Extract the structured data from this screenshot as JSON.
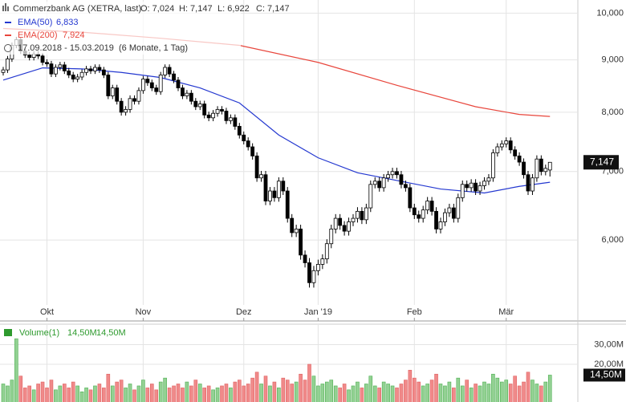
{
  "chart_data": [
    {
      "type": "candlestick",
      "title": "Commerzbank AG (XETRA, last)",
      "quote": [
        "O: 7,024",
        "H: 7,147",
        "L: 6,922",
        "C: 7,147"
      ],
      "period": "17.09.2018 - 15.03.2019",
      "period_note": "(6 Monate, 1 Tag)",
      "open": [
        8.75,
        8.8,
        9.02,
        9.3,
        9.42,
        9.18,
        9.1,
        9.05,
        9.12,
        9.08,
        8.95,
        8.92,
        8.72,
        8.85,
        8.9,
        8.78,
        8.7,
        8.62,
        8.66,
        8.75,
        8.82,
        8.78,
        8.85,
        8.8,
        8.7,
        8.3,
        8.45,
        8.2,
        8.0,
        8.05,
        8.25,
        8.2,
        8.4,
        8.62,
        8.55,
        8.45,
        8.38,
        8.7,
        8.85,
        8.72,
        8.6,
        8.45,
        8.3,
        8.35,
        8.2,
        8.1,
        8.15,
        7.95,
        7.9,
        7.98,
        8.05,
        8.02,
        7.85,
        7.9,
        7.75,
        7.6,
        7.5,
        7.4,
        7.25,
        6.9,
        6.95,
        6.55,
        6.7,
        6.6,
        6.85,
        6.7,
        6.3,
        6.1,
        6.15,
        5.8,
        5.7,
        5.45,
        5.6,
        5.68,
        5.75,
        5.95,
        6.15,
        6.3,
        6.2,
        6.12,
        6.25,
        6.3,
        6.4,
        6.28,
        6.45,
        6.8,
        6.85,
        6.75,
        6.9,
        6.95,
        7.0,
        6.95,
        6.8,
        6.75,
        6.45,
        6.35,
        6.3,
        6.42,
        6.55,
        6.4,
        6.15,
        6.25,
        6.38,
        6.45,
        6.3,
        6.6,
        6.8,
        6.75,
        6.82,
        6.7,
        6.78,
        6.85,
        6.9,
        7.3,
        7.4,
        7.45,
        7.5,
        7.35,
        7.25,
        7.15,
        6.95,
        6.7,
        6.9,
        7.2,
        7.0,
        7.024
      ],
      "high": [
        8.86,
        9.08,
        9.36,
        9.48,
        9.48,
        9.24,
        9.16,
        9.18,
        9.18,
        9.14,
        9.01,
        8.98,
        8.91,
        8.96,
        8.96,
        8.84,
        8.76,
        8.72,
        8.81,
        8.88,
        8.88,
        8.91,
        8.91,
        8.86,
        8.76,
        8.51,
        8.51,
        8.26,
        8.11,
        8.31,
        8.31,
        8.46,
        8.68,
        8.68,
        8.61,
        8.51,
        8.76,
        8.91,
        8.91,
        8.78,
        8.66,
        8.51,
        8.41,
        8.41,
        8.26,
        8.21,
        8.21,
        8.01,
        8.04,
        8.11,
        8.11,
        8.08,
        7.96,
        7.96,
        7.81,
        7.66,
        7.56,
        7.46,
        7.31,
        7.01,
        7.01,
        6.76,
        6.76,
        6.91,
        6.91,
        6.76,
        6.36,
        6.21,
        6.21,
        5.86,
        5.76,
        5.66,
        5.74,
        5.81,
        6.01,
        6.21,
        6.36,
        6.36,
        6.26,
        6.31,
        6.36,
        6.46,
        6.46,
        6.51,
        6.86,
        6.91,
        6.91,
        6.96,
        7.01,
        7.06,
        7.06,
        7.01,
        6.86,
        6.81,
        6.51,
        6.41,
        6.48,
        6.61,
        6.61,
        6.46,
        6.31,
        6.44,
        6.51,
        6.51,
        6.66,
        6.86,
        6.86,
        6.88,
        6.88,
        6.84,
        6.91,
        6.96,
        7.36,
        7.46,
        7.51,
        7.56,
        7.56,
        7.41,
        7.31,
        7.21,
        7.01,
        6.96,
        7.26,
        7.26,
        7.11,
        7.147
      ],
      "low": [
        8.69,
        8.74,
        8.96,
        9.24,
        9.12,
        9.04,
        8.99,
        8.99,
        9.02,
        8.89,
        8.86,
        8.66,
        8.66,
        8.79,
        8.72,
        8.64,
        8.56,
        8.56,
        8.6,
        8.69,
        8.72,
        8.72,
        8.74,
        8.64,
        8.24,
        8.24,
        8.14,
        7.94,
        7.94,
        7.99,
        8.14,
        8.14,
        8.34,
        8.49,
        8.39,
        8.32,
        8.32,
        8.64,
        8.66,
        8.54,
        8.39,
        8.24,
        8.24,
        8.14,
        8.04,
        8.04,
        7.89,
        7.84,
        7.84,
        7.92,
        7.96,
        7.79,
        7.79,
        7.69,
        7.54,
        7.44,
        7.34,
        7.19,
        6.84,
        6.84,
        6.49,
        6.49,
        6.54,
        6.54,
        6.64,
        6.24,
        6.04,
        6.04,
        5.74,
        5.64,
        5.39,
        5.39,
        5.54,
        5.62,
        5.69,
        5.89,
        6.09,
        6.14,
        6.06,
        6.06,
        6.19,
        6.24,
        6.22,
        6.22,
        6.39,
        6.74,
        6.69,
        6.69,
        6.84,
        6.89,
        6.89,
        6.74,
        6.69,
        6.39,
        6.29,
        6.24,
        6.24,
        6.36,
        6.34,
        6.09,
        6.09,
        6.19,
        6.32,
        6.24,
        6.24,
        6.54,
        6.69,
        6.69,
        6.64,
        6.64,
        6.72,
        6.79,
        6.84,
        7.24,
        7.34,
        7.39,
        7.29,
        7.19,
        7.09,
        6.89,
        6.64,
        6.64,
        6.84,
        6.94,
        6.94,
        6.922
      ],
      "close": [
        8.8,
        9.02,
        9.3,
        9.42,
        9.18,
        9.1,
        9.05,
        9.12,
        9.08,
        8.95,
        8.92,
        8.72,
        8.85,
        8.9,
        8.78,
        8.7,
        8.62,
        8.66,
        8.75,
        8.82,
        8.78,
        8.85,
        8.8,
        8.7,
        8.3,
        8.45,
        8.2,
        8.0,
        8.05,
        8.25,
        8.2,
        8.4,
        8.62,
        8.55,
        8.45,
        8.38,
        8.7,
        8.85,
        8.72,
        8.6,
        8.45,
        8.3,
        8.35,
        8.2,
        8.1,
        8.15,
        7.95,
        7.9,
        7.98,
        8.05,
        8.02,
        7.85,
        7.9,
        7.75,
        7.6,
        7.5,
        7.4,
        7.25,
        6.9,
        6.95,
        6.55,
        6.7,
        6.6,
        6.85,
        6.7,
        6.3,
        6.1,
        6.15,
        5.8,
        5.7,
        5.45,
        5.6,
        5.68,
        5.75,
        5.95,
        6.15,
        6.3,
        6.2,
        6.12,
        6.25,
        6.3,
        6.4,
        6.28,
        6.45,
        6.8,
        6.85,
        6.75,
        6.9,
        6.95,
        7.0,
        6.95,
        6.8,
        6.75,
        6.45,
        6.35,
        6.3,
        6.42,
        6.55,
        6.4,
        6.15,
        6.25,
        6.38,
        6.45,
        6.3,
        6.6,
        6.8,
        6.75,
        6.82,
        6.7,
        6.78,
        6.85,
        6.9,
        7.3,
        7.4,
        7.45,
        7.5,
        7.35,
        7.25,
        7.15,
        6.95,
        6.7,
        6.9,
        7.2,
        7.0,
        7.05,
        7.147
      ],
      "up_color": "#ffffff",
      "down_color": "#000000",
      "series": [
        {
          "name": "EMA(50)",
          "color": "#2438d0",
          "value_label": "6,833",
          "x": [
            0,
            9,
            18,
            27,
            36,
            45,
            54,
            63,
            72,
            81,
            90,
            100,
            110,
            118,
            125
          ],
          "values": [
            8.6,
            8.84,
            8.82,
            8.75,
            8.65,
            8.45,
            8.17,
            7.6,
            7.22,
            6.98,
            6.86,
            6.73,
            6.67,
            6.77,
            6.833
          ]
        },
        {
          "name": "EMA(200)",
          "color": "#e8463c",
          "value_label": "7,924",
          "x": [
            0,
            18,
            36,
            54,
            72,
            90,
            108,
            118,
            125
          ],
          "values": [
            9.66,
            9.58,
            9.45,
            9.3,
            8.95,
            8.5,
            8.1,
            7.96,
            7.924
          ]
        }
      ],
      "last_label": "7,147",
      "log_scale": true,
      "grid": true,
      "ylim": [
        5.0,
        10.3
      ],
      "yticks": [
        {
          "value": 6,
          "label": "6,000"
        },
        {
          "value": 7,
          "label": "7,000"
        },
        {
          "value": 8,
          "label": "8,000"
        },
        {
          "value": 9,
          "label": "9,000"
        },
        {
          "value": 10,
          "label": "10,000"
        }
      ],
      "xticks": [
        {
          "value": 10,
          "label": "Okt"
        },
        {
          "value": 32,
          "label": "Nov"
        },
        {
          "value": 55,
          "label": "Dez"
        },
        {
          "value": 72,
          "label": "Jan '19"
        },
        {
          "value": 94,
          "label": "Feb"
        },
        {
          "value": 115,
          "label": "Mär"
        }
      ]
    },
    {
      "type": "bar",
      "series": [
        {
          "name": "Volume(1)",
          "color": "#2e9a2e",
          "value_label": "14,50M",
          "values": [
            10,
            9,
            12,
            33,
            14,
            8,
            9,
            7,
            10,
            11,
            8,
            12,
            7,
            9,
            10,
            8,
            11,
            9,
            6,
            8,
            7,
            9,
            10,
            8,
            15,
            9,
            11,
            12,
            8,
            10,
            7,
            9,
            12,
            8,
            10,
            7,
            11,
            13,
            8,
            9,
            10,
            8,
            11,
            9,
            12,
            10,
            8,
            9,
            7,
            8,
            9,
            10,
            8,
            11,
            12,
            9,
            10,
            13,
            16,
            10,
            14,
            9,
            11,
            8,
            13,
            12,
            10,
            11,
            15,
            12,
            20,
            14,
            9,
            10,
            11,
            12,
            9,
            8,
            10,
            7,
            9,
            11,
            8,
            10,
            14,
            9,
            8,
            11,
            10,
            9,
            8,
            10,
            12,
            17,
            13,
            11,
            9,
            10,
            12,
            15,
            10,
            9,
            11,
            8,
            13,
            9,
            12,
            8,
            10,
            9,
            11,
            10,
            15,
            13,
            11,
            12,
            10,
            14,
            9,
            11,
            16,
            12,
            10,
            9,
            11,
            14.5
          ]
        }
      ],
      "up_color": "#93d193",
      "down_color": "#f08a8a",
      "last_label": "14,50M",
      "grid": true,
      "ylim": [
        0,
        40
      ],
      "yticks": [
        {
          "value": 20,
          "label": "20,00M"
        },
        {
          "value": 30,
          "label": "30,00M"
        }
      ]
    }
  ]
}
